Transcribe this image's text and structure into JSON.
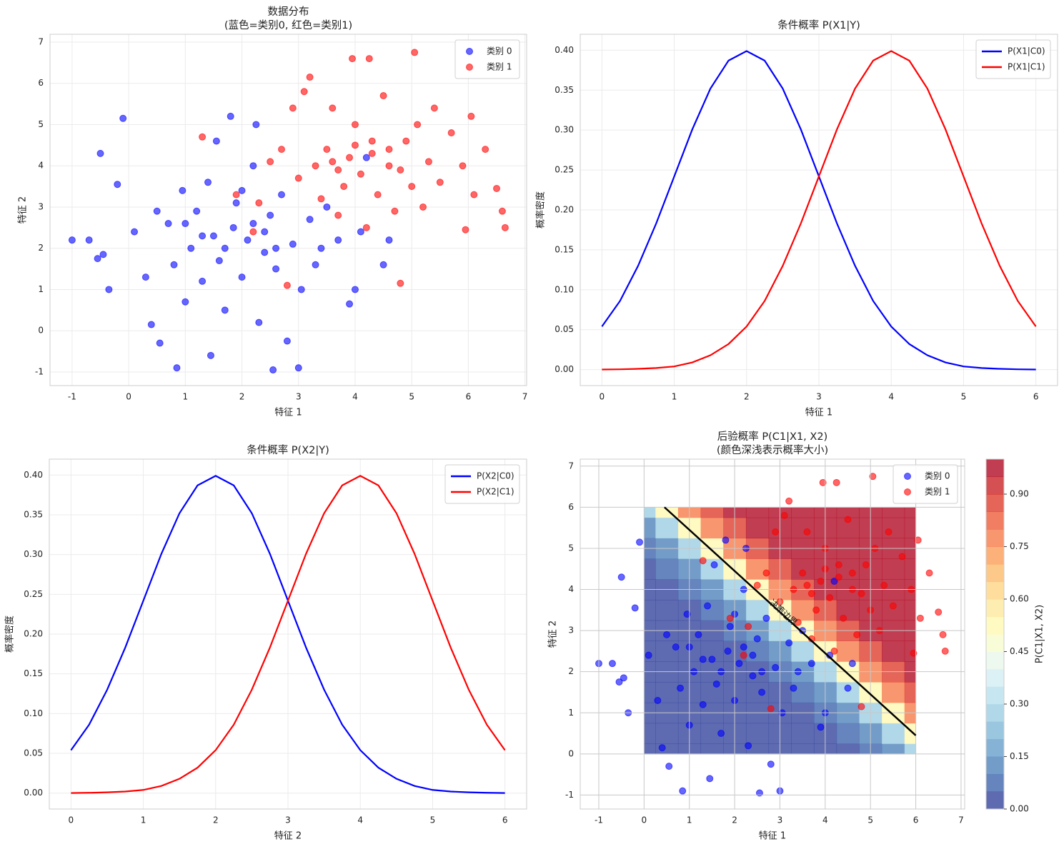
{
  "chart_data": [
    {
      "type": "scatter",
      "title": [
        "数据分布",
        "(蓝色=类别0, 红色=类别1)"
      ],
      "xlabel": "特征 1",
      "ylabel": "特征 2",
      "xlim": [
        -1.39,
        7.03
      ],
      "ylim": [
        -1.33,
        7.19
      ],
      "xticks": [
        -1,
        0,
        1,
        2,
        3,
        4,
        5,
        6,
        7
      ],
      "yticks": [
        -1,
        0,
        1,
        2,
        3,
        4,
        5,
        6,
        7
      ],
      "grid": true,
      "legend": "upper right",
      "series": [
        {
          "name": "类别 0",
          "color": "#0000ff",
          "x": [
            -1.0,
            -0.7,
            -0.55,
            -0.5,
            -0.45,
            -0.35,
            -0.2,
            -0.1,
            0.1,
            0.3,
            0.4,
            0.55,
            0.7,
            0.8,
            0.85,
            0.95,
            1.0,
            1.1,
            1.2,
            1.3,
            1.4,
            1.45,
            1.5,
            1.55,
            1.6,
            1.7,
            1.8,
            1.85,
            1.9,
            2.0,
            2.1,
            2.2,
            2.25,
            2.3,
            2.4,
            2.5,
            2.55,
            2.6,
            2.7,
            2.8,
            2.9,
            3.0,
            3.05,
            3.2,
            3.3,
            3.5,
            3.7,
            3.9,
            4.0,
            4.1,
            4.2,
            4.5,
            4.6,
            2.2,
            1.3,
            2.6,
            1.7,
            2.4,
            1.0,
            3.4,
            2.0,
            0.5
          ],
          "y": [
            2.2,
            2.2,
            1.75,
            4.3,
            1.85,
            1.0,
            3.55,
            5.15,
            2.4,
            1.3,
            0.15,
            -0.3,
            2.6,
            1.6,
            -0.9,
            3.4,
            0.7,
            2.0,
            2.9,
            1.2,
            3.6,
            -0.6,
            2.3,
            4.6,
            1.7,
            0.5,
            5.2,
            2.5,
            3.1,
            1.3,
            2.2,
            4.0,
            5.0,
            0.2,
            1.9,
            2.8,
            -0.95,
            1.5,
            3.3,
            -0.25,
            2.1,
            -0.9,
            1.0,
            2.7,
            1.6,
            3.0,
            2.2,
            0.65,
            1.0,
            2.4,
            4.2,
            1.6,
            2.2,
            2.6,
            2.3,
            2.0,
            2.0,
            2.4,
            2.6,
            2.0,
            3.4,
            2.9
          ]
        },
        {
          "name": "类别 1",
          "color": "#ff0000",
          "x": [
            1.3,
            1.9,
            2.2,
            2.3,
            2.5,
            2.7,
            2.8,
            2.9,
            3.0,
            3.1,
            3.2,
            3.3,
            3.4,
            3.5,
            3.6,
            3.7,
            3.8,
            3.9,
            3.95,
            4.0,
            4.1,
            4.2,
            4.25,
            4.3,
            4.4,
            4.5,
            4.6,
            4.7,
            4.8,
            4.9,
            5.0,
            5.05,
            5.1,
            5.2,
            5.3,
            5.4,
            5.5,
            5.7,
            5.9,
            5.95,
            6.05,
            6.1,
            6.3,
            6.5,
            6.6,
            6.65,
            4.3,
            3.7,
            4.6,
            3.6,
            4.0,
            4.8
          ],
          "y": [
            4.7,
            3.3,
            2.4,
            3.1,
            4.1,
            4.4,
            1.1,
            5.4,
            3.7,
            5.8,
            6.15,
            4.0,
            3.2,
            4.4,
            5.4,
            2.8,
            3.5,
            4.2,
            6.6,
            5.0,
            3.8,
            2.5,
            6.6,
            4.6,
            3.3,
            5.7,
            4.0,
            2.9,
            1.15,
            4.6,
            3.5,
            6.75,
            5.0,
            3.0,
            4.1,
            5.4,
            3.6,
            4.8,
            4.0,
            2.45,
            5.2,
            3.3,
            4.4,
            3.45,
            2.9,
            2.5,
            4.3,
            3.9,
            4.4,
            4.1,
            4.5,
            3.9
          ]
        }
      ]
    },
    {
      "type": "line",
      "title": [
        "条件概率 P(X1|Y)"
      ],
      "xlabel": "特征 1",
      "ylabel": "概率密度",
      "xlim": [
        -0.3,
        6.3
      ],
      "ylim": [
        -0.02,
        0.42
      ],
      "xticks": [
        0,
        1,
        2,
        3,
        4,
        5,
        6
      ],
      "yticks": [
        {
          "value": 0,
          "label": "0.00"
        },
        {
          "value": 0.05,
          "label": "0.05"
        },
        {
          "value": 0.1,
          "label": "0.10"
        },
        {
          "value": 0.15,
          "label": "0.15"
        },
        {
          "value": 0.2,
          "label": "0.20"
        },
        {
          "value": 0.25,
          "label": "0.25"
        },
        {
          "value": 0.3,
          "label": "0.30"
        },
        {
          "value": 0.35,
          "label": "0.35"
        },
        {
          "value": 0.4,
          "label": "0.40"
        }
      ],
      "grid": true,
      "legend": "upper right",
      "x": [
        0,
        0.25,
        0.5,
        0.75,
        1,
        1.25,
        1.5,
        1.75,
        2,
        2.25,
        2.5,
        2.75,
        3,
        3.25,
        3.5,
        3.75,
        4,
        4.25,
        4.5,
        4.75,
        5,
        5.25,
        5.5,
        5.75,
        6
      ],
      "series": [
        {
          "name": "P(X1|C0)",
          "color": "#0000ff",
          "values": [
            0.054,
            0.086,
            0.13,
            0.183,
            0.242,
            0.301,
            0.352,
            0.387,
            0.399,
            0.387,
            0.352,
            0.301,
            0.242,
            0.183,
            0.13,
            0.086,
            0.054,
            0.032,
            0.018,
            0.009,
            0.004,
            0.002,
            0.001,
            0.0004,
            0.0001
          ]
        },
        {
          "name": "P(X1|C1)",
          "color": "#ff0000",
          "values": [
            0.0001,
            0.0004,
            0.001,
            0.002,
            0.004,
            0.009,
            0.018,
            0.032,
            0.054,
            0.086,
            0.13,
            0.183,
            0.242,
            0.301,
            0.352,
            0.387,
            0.399,
            0.387,
            0.352,
            0.301,
            0.242,
            0.183,
            0.13,
            0.086,
            0.054
          ]
        }
      ]
    },
    {
      "type": "line",
      "title": [
        "条件概率 P(X2|Y)"
      ],
      "xlabel": "特征 2",
      "ylabel": "概率密度",
      "xlim": [
        -0.3,
        6.3
      ],
      "ylim": [
        -0.02,
        0.42
      ],
      "xticks": [
        0,
        1,
        2,
        3,
        4,
        5,
        6
      ],
      "yticks": [
        {
          "value": 0,
          "label": "0.00"
        },
        {
          "value": 0.05,
          "label": "0.05"
        },
        {
          "value": 0.1,
          "label": "0.10"
        },
        {
          "value": 0.15,
          "label": "0.15"
        },
        {
          "value": 0.2,
          "label": "0.20"
        },
        {
          "value": 0.25,
          "label": "0.25"
        },
        {
          "value": 0.3,
          "label": "0.30"
        },
        {
          "value": 0.35,
          "label": "0.35"
        },
        {
          "value": 0.4,
          "label": "0.40"
        }
      ],
      "grid": true,
      "legend": "upper right",
      "x": [
        0,
        0.25,
        0.5,
        0.75,
        1,
        1.25,
        1.5,
        1.75,
        2,
        2.25,
        2.5,
        2.75,
        3,
        3.25,
        3.5,
        3.75,
        4,
        4.25,
        4.5,
        4.75,
        5,
        5.25,
        5.5,
        5.75,
        6
      ],
      "series": [
        {
          "name": "P(X2|C0)",
          "color": "#0000ff",
          "values": [
            0.054,
            0.086,
            0.13,
            0.183,
            0.242,
            0.301,
            0.352,
            0.387,
            0.399,
            0.387,
            0.352,
            0.301,
            0.242,
            0.183,
            0.13,
            0.086,
            0.054,
            0.032,
            0.018,
            0.009,
            0.004,
            0.002,
            0.001,
            0.0004,
            0.0001
          ]
        },
        {
          "name": "P(X2|C1)",
          "color": "#ff0000",
          "values": [
            0.0001,
            0.0004,
            0.001,
            0.002,
            0.004,
            0.009,
            0.018,
            0.032,
            0.054,
            0.086,
            0.13,
            0.183,
            0.242,
            0.301,
            0.352,
            0.387,
            0.399,
            0.387,
            0.352,
            0.301,
            0.242,
            0.183,
            0.13,
            0.086,
            0.054
          ]
        }
      ]
    },
    {
      "type": "contour",
      "title": [
        "后验概率 P(C1|X1, X2)",
        "(颜色深浅表示概率大小)"
      ],
      "xlabel": "特征 1",
      "ylabel": "特征 2",
      "xlim": [
        -1.41,
        7.08
      ],
      "ylim": [
        -1.34,
        7.17
      ],
      "xticks": [
        -1,
        0,
        1,
        2,
        3,
        4,
        5,
        6,
        7
      ],
      "yticks": [
        -1,
        0,
        1,
        2,
        3,
        4,
        5,
        6,
        7
      ],
      "grid": true,
      "legend": "upper right",
      "grid_x": [
        0,
        0.5,
        1,
        1.5,
        2,
        2.5,
        3,
        3.5,
        4,
        4.5,
        5,
        5.5,
        6
      ],
      "grid_y": [
        0,
        0.5,
        1,
        1.5,
        2,
        2.5,
        3,
        3.5,
        4,
        4.5,
        5,
        5.5,
        6
      ],
      "z": [
        [
          0,
          0,
          0,
          0,
          0,
          0,
          0,
          0,
          0.01,
          0.02,
          0.05,
          0.13,
          0.29
        ],
        [
          0,
          0,
          0,
          0,
          0,
          0,
          0,
          0.01,
          0.02,
          0.05,
          0.13,
          0.29,
          0.52
        ],
        [
          0,
          0,
          0,
          0,
          0,
          0,
          0.01,
          0.02,
          0.05,
          0.13,
          0.29,
          0.52,
          0.75
        ],
        [
          0,
          0,
          0,
          0,
          0,
          0.01,
          0.02,
          0.05,
          0.13,
          0.29,
          0.52,
          0.75,
          0.89
        ],
        [
          0,
          0,
          0,
          0,
          0.01,
          0.02,
          0.05,
          0.13,
          0.29,
          0.52,
          0.75,
          0.89,
          0.96
        ],
        [
          0,
          0,
          0,
          0.01,
          0.02,
          0.05,
          0.13,
          0.29,
          0.52,
          0.75,
          0.89,
          0.96,
          0.98
        ],
        [
          0,
          0,
          0.01,
          0.02,
          0.05,
          0.13,
          0.29,
          0.52,
          0.75,
          0.89,
          0.96,
          0.98,
          0.99
        ],
        [
          0,
          0.01,
          0.02,
          0.05,
          0.13,
          0.29,
          0.52,
          0.75,
          0.89,
          0.96,
          0.98,
          0.99,
          1
        ],
        [
          0.01,
          0.02,
          0.05,
          0.13,
          0.29,
          0.52,
          0.75,
          0.89,
          0.96,
          0.98,
          0.99,
          1,
          1
        ],
        [
          0.02,
          0.05,
          0.13,
          0.29,
          0.52,
          0.75,
          0.89,
          0.96,
          0.98,
          0.99,
          1,
          1,
          1
        ],
        [
          0.05,
          0.13,
          0.29,
          0.52,
          0.75,
          0.89,
          0.96,
          0.98,
          0.99,
          1,
          1,
          1,
          1
        ],
        [
          0.13,
          0.29,
          0.52,
          0.75,
          0.89,
          0.96,
          0.98,
          0.99,
          1,
          1,
          1,
          1,
          1
        ],
        [
          0.29,
          0.52,
          0.75,
          0.89,
          0.96,
          0.98,
          0.99,
          1,
          1,
          1,
          1,
          1,
          1
        ]
      ],
      "colormap": [
        "#313695",
        "#4575b4",
        "#74add1",
        "#abd9e9",
        "#e0f3f8",
        "#ffffbf",
        "#fee090",
        "#fdae61",
        "#f46d43",
        "#d73027",
        "#a50026"
      ],
      "levels": 20,
      "alpha": 0.8,
      "colorbar": {
        "label": "P(C1|X1, X2)",
        "lim": [
          0,
          1
        ],
        "ticks": [
          {
            "value": 0,
            "label": "0.00"
          },
          {
            "value": 0.15,
            "label": "0.15"
          },
          {
            "value": 0.3,
            "label": "0.30"
          },
          {
            "value": 0.45,
            "label": "0.45"
          },
          {
            "value": 0.6,
            "label": "0.60"
          },
          {
            "value": 0.75,
            "label": "0.75"
          },
          {
            "value": 0.9,
            "label": "0.90"
          }
        ]
      },
      "boundary": {
        "label": "决策边界",
        "color": "#000000",
        "x": [
          0.45,
          6
        ],
        "y": [
          6,
          0.45
        ]
      }
    }
  ]
}
